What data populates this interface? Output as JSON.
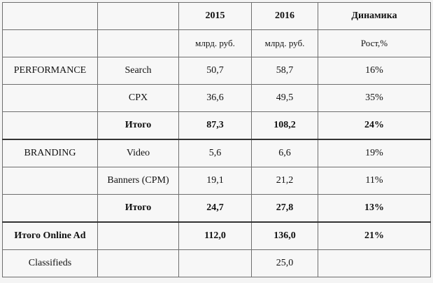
{
  "header": {
    "year1": "2015",
    "year2": "2016",
    "dynamics": "Динамика"
  },
  "units": {
    "unit1": "млрд. руб.",
    "unit2": "млрд. руб.",
    "growth": "Рост,%"
  },
  "rows": [
    {
      "group": "PERFORMANCE",
      "sub": "Search",
      "v2015": "50,7",
      "v2016": "58,7",
      "growth": "16%"
    },
    {
      "group": "",
      "sub": "CPX",
      "v2015": "36,6",
      "v2016": "49,5",
      "growth": "35%"
    },
    {
      "group": "",
      "sub": "Итого",
      "v2015": "87,3",
      "v2016": "108,2",
      "growth": "24%"
    },
    {
      "group": "BRANDING",
      "sub": "Video",
      "v2015": "5,6",
      "v2016": "6,6",
      "growth": "19%"
    },
    {
      "group": "",
      "sub": "Banners (CPM)",
      "v2015": "19,1",
      "v2016": "21,2",
      "growth": "11%"
    },
    {
      "group": "",
      "sub": "Итого",
      "v2015": "24,7",
      "v2016": "27,8",
      "growth": "13%"
    },
    {
      "group": "Итого Online Ad",
      "sub": "",
      "v2015": "112,0",
      "v2016": "136,0",
      "growth": "21%"
    },
    {
      "group": "Classifieds",
      "sub": "",
      "v2015": "",
      "v2016": "25,0",
      "growth": ""
    }
  ]
}
